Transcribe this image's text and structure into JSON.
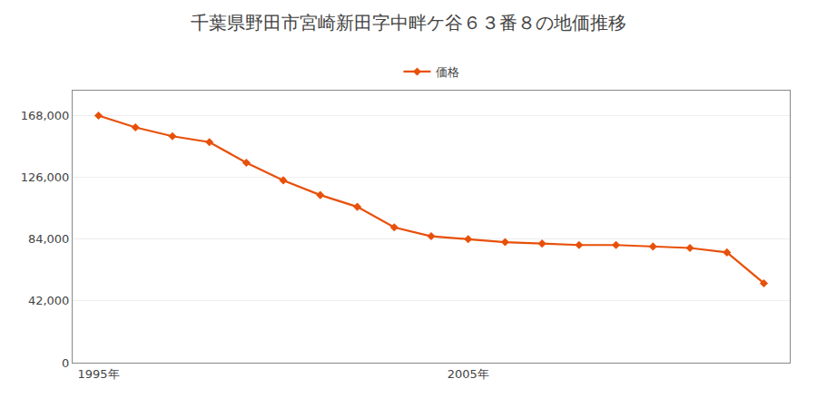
{
  "chart_data": {
    "type": "line",
    "title": "千葉県野田市宮崎新田字中畔ケ谷６３番８の地価推移",
    "x": [
      1995,
      1996,
      1997,
      1998,
      1999,
      2000,
      2001,
      2002,
      2003,
      2004,
      2005,
      2006,
      2007,
      2008,
      2009,
      2010,
      2011,
      2012,
      2013
    ],
    "series": [
      {
        "name": "価格",
        "color": "#E8500A",
        "marker": "diamond",
        "values": [
          168000,
          160000,
          154000,
          150000,
          136000,
          124000,
          114000,
          106000,
          92000,
          86000,
          84000,
          82000,
          81000,
          80000,
          80000,
          79000,
          78000,
          75000,
          54000
        ]
      }
    ],
    "xlim": [
      1994.3,
      2013.7
    ],
    "xticks": [
      {
        "value": 1995,
        "label": "1995年"
      },
      {
        "value": 2005,
        "label": "2005年"
      }
    ],
    "ylim": [
      0,
      185000
    ],
    "yticks": [
      0,
      {
        "value": 42000,
        "label": "42,000"
      },
      {
        "value": 84000,
        "label": "84,000"
      },
      {
        "value": 126000,
        "label": "126,000"
      },
      {
        "value": 168000,
        "label": "168,000"
      }
    ],
    "grid": "y",
    "legend": "top"
  }
}
